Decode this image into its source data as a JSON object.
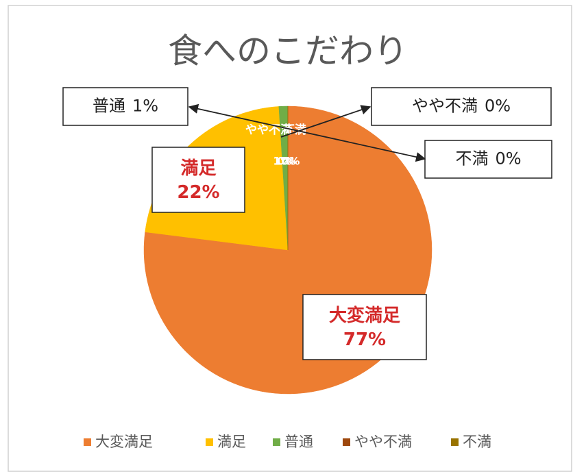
{
  "chart_data": {
    "type": "pie",
    "title": "食へのこだわり",
    "categories": [
      "大変満足",
      "満足",
      "普通",
      "やや不満",
      "不満"
    ],
    "values": [
      77,
      22,
      1,
      0,
      0
    ],
    "value_labels": [
      "77%",
      "22%",
      "1%",
      "0%",
      "0%"
    ],
    "colors": [
      "#ed7d31",
      "#ffc000",
      "#70ad47",
      "#9e480e",
      "#997300"
    ],
    "legend": "bottom"
  }
}
